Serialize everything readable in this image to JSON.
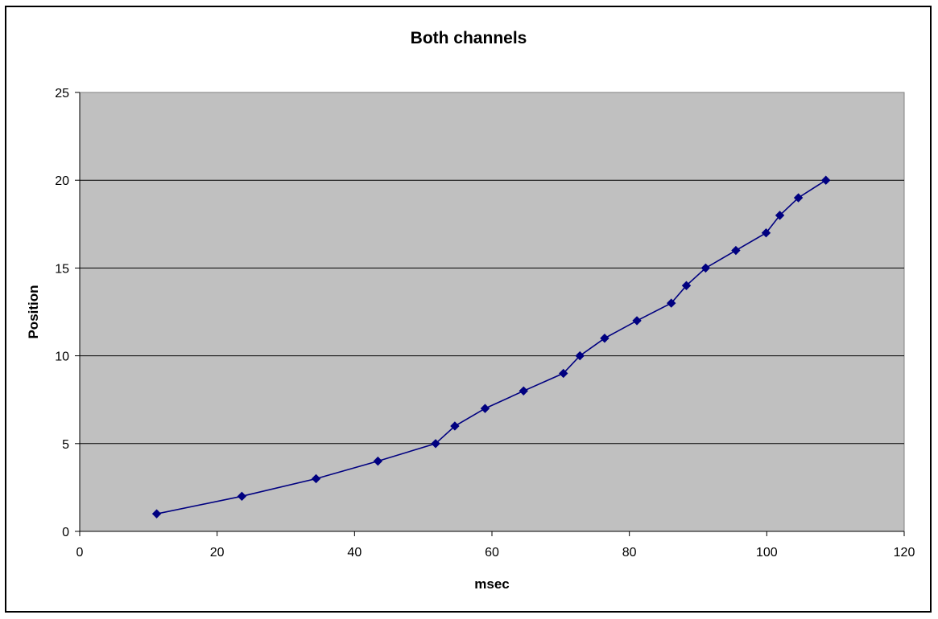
{
  "chart_data": {
    "type": "line",
    "title": "Both channels",
    "xlabel": "msec",
    "ylabel": "Position",
    "xlim": [
      0,
      120
    ],
    "ylim": [
      0,
      25
    ],
    "x_ticks": [
      0,
      20,
      40,
      60,
      80,
      100,
      120
    ],
    "y_ticks": [
      0,
      5,
      10,
      15,
      20,
      25
    ],
    "grid": "horizontal",
    "plot_background": "#c0c0c0",
    "series": [
      {
        "color": "#000080",
        "marker": "diamond",
        "x": [
          11.2,
          23.6,
          34.4,
          43.4,
          51.8,
          54.6,
          59.0,
          64.6,
          70.4,
          72.8,
          76.4,
          81.1,
          86.1,
          88.3,
          91.1,
          95.5,
          99.9,
          101.9,
          104.6,
          108.6
        ],
        "y": [
          1,
          2,
          3,
          4,
          5,
          6,
          7,
          8,
          9,
          10,
          11,
          12,
          13,
          14,
          15,
          16,
          17,
          18,
          19,
          20
        ]
      }
    ]
  }
}
